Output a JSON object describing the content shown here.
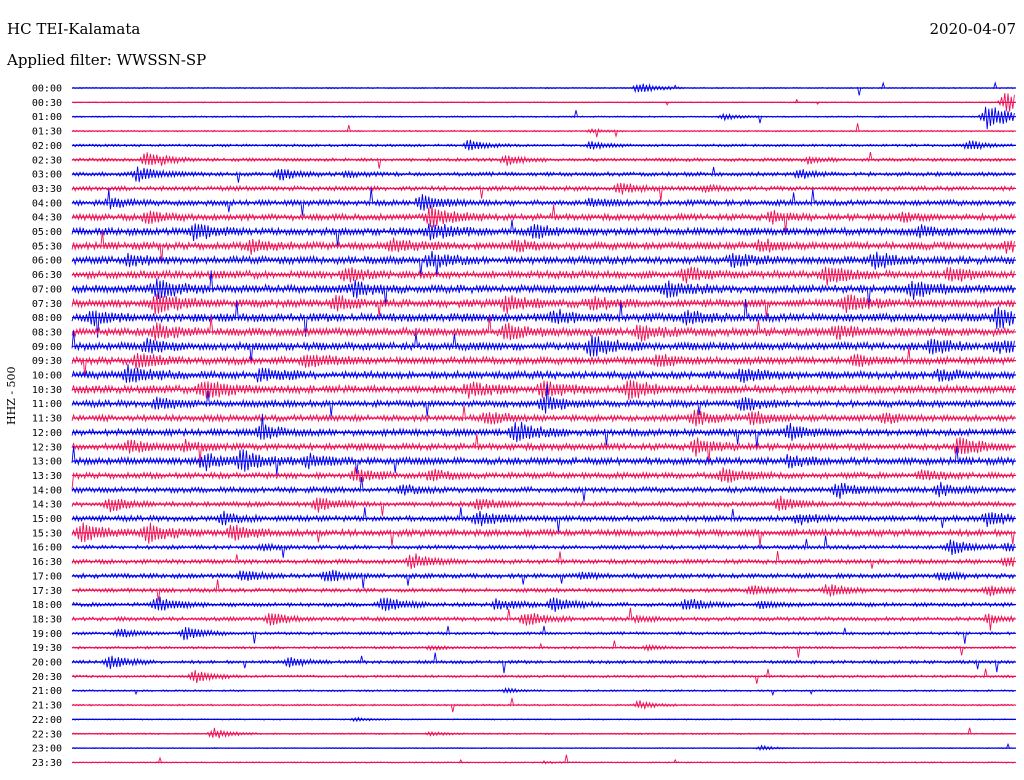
{
  "header": {
    "station": "HC TEI-Kalamata",
    "date": "2020-04-07",
    "filter": "Applied filter: WWSSN-SP"
  },
  "channel_label": "HHZ - 500",
  "colors": {
    "odd_trace": "#0000ee",
    "even_trace": "#ee1155"
  },
  "chart_data": {
    "type": "line",
    "title": "HC TEI-Kalamata",
    "ylabel": "HHZ - 500",
    "categories": [
      "00:00",
      "00:30",
      "01:00",
      "01:30",
      "02:00",
      "02:30",
      "03:00",
      "03:30",
      "04:00",
      "04:30",
      "05:00",
      "05:30",
      "06:00",
      "06:30",
      "07:00",
      "07:30",
      "08:00",
      "08:30",
      "09:00",
      "09:30",
      "10:00",
      "10:30",
      "11:00",
      "11:30",
      "12:00",
      "12:30",
      "13:00",
      "13:30",
      "14:00",
      "14:30",
      "15:00",
      "15:30",
      "16:00",
      "16:30",
      "17:00",
      "17:30",
      "18:00",
      "18:30",
      "19:00",
      "19:30",
      "20:00",
      "20:30",
      "21:00",
      "21:30",
      "22:00",
      "22:30",
      "23:00",
      "23:30"
    ],
    "noise_level": [
      0.5,
      0.4,
      0.6,
      0.6,
      1.0,
      1.3,
      1.6,
      1.8,
      2.2,
      2.5,
      2.8,
      2.9,
      3.0,
      3.0,
      3.2,
      3.1,
      3.3,
      3.2,
      3.0,
      2.9,
      3.0,
      3.1,
      2.6,
      2.5,
      2.7,
      2.6,
      2.8,
      2.4,
      2.2,
      2.0,
      2.2,
      2.6,
      1.6,
      1.8,
      1.8,
      1.6,
      1.6,
      1.6,
      1.2,
      1.0,
      1.3,
      1.0,
      0.7,
      0.7,
      0.5,
      0.6,
      0.4,
      0.5
    ],
    "bursts": [
      [
        [
          0.6,
          6
        ]
      ],
      [
        [
          0.99,
          10
        ]
      ],
      [
        [
          0.69,
          3
        ],
        [
          0.97,
          12
        ]
      ],
      [
        [
          0.55,
          2
        ]
      ],
      [
        [
          0.42,
          5
        ],
        [
          0.55,
          4
        ],
        [
          0.95,
          5
        ]
      ],
      [
        [
          0.08,
          8
        ],
        [
          0.46,
          5
        ],
        [
          0.78,
          3
        ]
      ],
      [
        [
          0.07,
          7
        ],
        [
          0.22,
          5
        ],
        [
          0.29,
          3
        ],
        [
          0.77,
          4
        ]
      ],
      [
        [
          0.58,
          5
        ],
        [
          0.67,
          3
        ]
      ],
      [
        [
          0.04,
          5
        ],
        [
          0.37,
          7
        ],
        [
          0.55,
          4
        ]
      ],
      [
        [
          0.08,
          6
        ],
        [
          0.38,
          9
        ],
        [
          0.74,
          5
        ],
        [
          0.88,
          4
        ]
      ],
      [
        [
          0.13,
          7
        ],
        [
          0.38,
          8
        ],
        [
          0.49,
          6
        ],
        [
          0.9,
          5
        ]
      ],
      [
        [
          0.19,
          6
        ],
        [
          0.34,
          7
        ],
        [
          0.47,
          5
        ],
        [
          0.73,
          5
        ],
        [
          0.99,
          4
        ]
      ],
      [
        [
          0.06,
          5
        ],
        [
          0.38,
          7
        ],
        [
          0.7,
          7
        ],
        [
          0.85,
          7
        ]
      ],
      [
        [
          0.29,
          6
        ],
        [
          0.65,
          7
        ],
        [
          0.8,
          8
        ],
        [
          0.93,
          6
        ]
      ],
      [
        [
          0.09,
          8
        ],
        [
          0.3,
          6
        ],
        [
          0.63,
          7
        ],
        [
          0.89,
          8
        ]
      ],
      [
        [
          0.09,
          9
        ],
        [
          0.28,
          6
        ],
        [
          0.46,
          7
        ],
        [
          0.55,
          6
        ],
        [
          0.82,
          7
        ]
      ],
      [
        [
          0.02,
          6
        ],
        [
          0.51,
          6
        ],
        [
          0.65,
          6
        ],
        [
          0.98,
          9
        ]
      ],
      [
        [
          0.09,
          7
        ],
        [
          0.46,
          7
        ],
        [
          0.6,
          7
        ],
        [
          0.81,
          6
        ]
      ],
      [
        [
          0.08,
          6
        ],
        [
          0.55,
          9
        ],
        [
          0.91,
          7
        ],
        [
          0.98,
          5
        ]
      ],
      [
        [
          0.07,
          7
        ],
        [
          0.25,
          7
        ],
        [
          0.62,
          5
        ],
        [
          0.83,
          5
        ]
      ],
      [
        [
          0.06,
          8
        ],
        [
          0.2,
          6
        ],
        [
          0.71,
          6
        ],
        [
          0.92,
          5
        ]
      ],
      [
        [
          0.14,
          9
        ],
        [
          0.42,
          7
        ],
        [
          0.5,
          8
        ],
        [
          0.59,
          8
        ]
      ],
      [
        [
          0.09,
          5
        ],
        [
          0.5,
          7
        ],
        [
          0.71,
          6
        ]
      ],
      [
        [
          0.44,
          6
        ],
        [
          0.66,
          7
        ],
        [
          0.72,
          6
        ],
        [
          0.86,
          5
        ]
      ],
      [
        [
          0.2,
          6
        ],
        [
          0.47,
          10
        ],
        [
          0.76,
          6
        ]
      ],
      [
        [
          0.06,
          6
        ],
        [
          0.12,
          5
        ],
        [
          0.66,
          7
        ],
        [
          0.94,
          8
        ]
      ],
      [
        [
          0.14,
          7
        ],
        [
          0.18,
          9
        ],
        [
          0.25,
          6
        ],
        [
          0.76,
          5
        ]
      ],
      [
        [
          0.3,
          6
        ],
        [
          0.38,
          5
        ],
        [
          0.69,
          7
        ],
        [
          0.9,
          5
        ]
      ],
      [
        [
          0.35,
          4
        ],
        [
          0.81,
          7
        ],
        [
          0.92,
          6
        ]
      ],
      [
        [
          0.04,
          6
        ],
        [
          0.26,
          6
        ],
        [
          0.43,
          5
        ],
        [
          0.75,
          6
        ]
      ],
      [
        [
          0.16,
          5
        ],
        [
          0.43,
          7
        ],
        [
          0.77,
          5
        ],
        [
          0.97,
          7
        ]
      ],
      [
        [
          0.01,
          8
        ],
        [
          0.08,
          9
        ],
        [
          0.17,
          7
        ]
      ],
      [
        [
          0.2,
          3
        ],
        [
          0.93,
          7
        ],
        [
          0.99,
          4
        ]
      ],
      [
        [
          0.36,
          7
        ],
        [
          0.99,
          5
        ]
      ],
      [
        [
          0.18,
          5
        ],
        [
          0.27,
          6
        ],
        [
          0.54,
          3
        ],
        [
          0.92,
          4
        ]
      ],
      [
        [
          0.72,
          5
        ],
        [
          0.8,
          6
        ],
        [
          0.97,
          5
        ]
      ],
      [
        [
          0.09,
          7
        ],
        [
          0.33,
          7
        ],
        [
          0.45,
          6
        ],
        [
          0.51,
          7
        ],
        [
          0.65,
          6
        ],
        [
          0.73,
          4
        ]
      ],
      [
        [
          0.21,
          6
        ],
        [
          0.48,
          7
        ],
        [
          0.6,
          3
        ],
        [
          0.97,
          4
        ]
      ],
      [
        [
          0.05,
          4
        ],
        [
          0.12,
          6
        ]
      ],
      [
        [
          0.38,
          2
        ],
        [
          0.61,
          2
        ]
      ],
      [
        [
          0.04,
          6
        ],
        [
          0.23,
          5
        ]
      ],
      [
        [
          0.13,
          6
        ]
      ],
      [
        [
          0.46,
          2
        ]
      ],
      [
        [
          0.6,
          4
        ]
      ],
      [
        [
          0.3,
          2
        ]
      ],
      [
        [
          0.15,
          5
        ],
        [
          0.38,
          2
        ]
      ],
      [
        [
          0.73,
          2
        ]
      ],
      [
        [
          0.5,
          1
        ]
      ]
    ]
  }
}
